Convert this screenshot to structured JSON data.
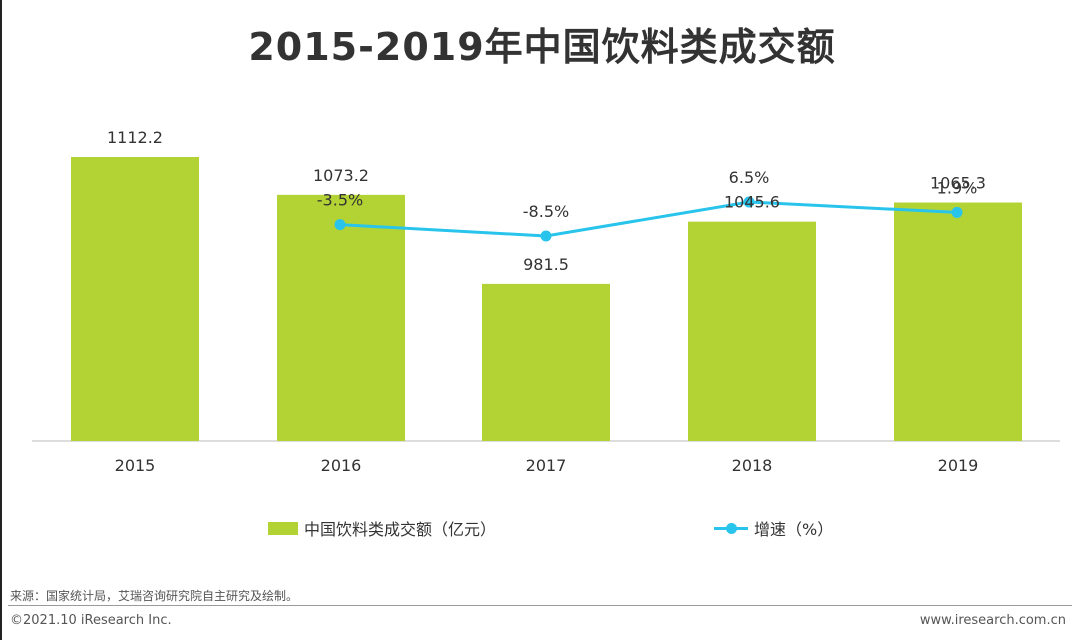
{
  "title": "2015-2019年中国饮料类成交额",
  "colors": {
    "bar": "#b3d334",
    "line": "#29c4ec",
    "axis": "#bbbbbb"
  },
  "chart_data": {
    "type": "bar",
    "categories": [
      "2015",
      "2016",
      "2017",
      "2018",
      "2019"
    ],
    "series": [
      {
        "name": "中国饮料类成交额（亿元）",
        "type": "bar",
        "values": [
          1112.2,
          1073.2,
          981.5,
          1045.6,
          1065.3
        ],
        "labels": [
          "1112.2",
          "1073.2",
          "981.5",
          "1045.6",
          "1065.3"
        ]
      },
      {
        "name": "增速（%）",
        "type": "line",
        "values": [
          null,
          -3.5,
          -8.5,
          6.5,
          1.9
        ],
        "labels": [
          "",
          "-3.5%",
          "-8.5%",
          "6.5%",
          "1.9%"
        ]
      }
    ],
    "legend_position": "bottom"
  },
  "source_text": "来源：国家统计局，艾瑞咨询研究院自主研究及绘制。",
  "copyright_text": "©2021.10 iResearch Inc.",
  "site_text": "www.iresearch.com.cn"
}
